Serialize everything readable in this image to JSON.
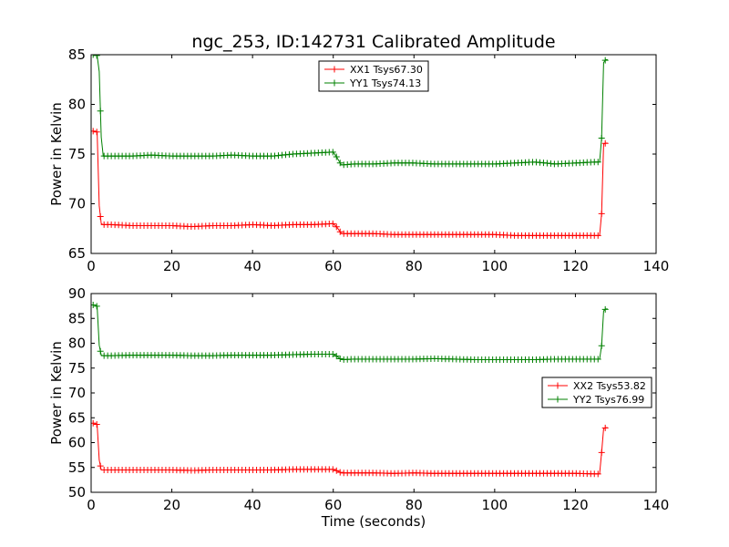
{
  "chart_data": [
    {
      "type": "line",
      "title": "ngc_253, ID:142731 Calibrated Amplitude",
      "xlabel": "",
      "ylabel": "Power in Kelvin",
      "xlim": [
        0,
        140
      ],
      "ylim": [
        65,
        85
      ],
      "xticks": [
        "0",
        "20",
        "40",
        "60",
        "80",
        "100",
        "120",
        "140"
      ],
      "yticks": [
        "65",
        "70",
        "75",
        "80",
        "85"
      ],
      "legend_position": "upper-center",
      "series": [
        {
          "name": "XX1 Tsys67.30",
          "color": "#ff0000",
          "x": [
            0.5,
            1,
            1.5,
            2,
            2.5,
            3,
            5,
            10,
            15,
            20,
            25,
            30,
            35,
            40,
            45,
            50,
            55,
            60,
            61,
            62,
            65,
            70,
            75,
            80,
            85,
            90,
            95,
            100,
            105,
            110,
            115,
            120,
            125,
            126,
            126.5,
            127,
            127.5,
            128
          ],
          "y": [
            77.3,
            77.3,
            77.2,
            69.8,
            68.0,
            67.9,
            67.9,
            67.8,
            67.8,
            67.8,
            67.7,
            67.8,
            67.8,
            67.9,
            67.8,
            67.9,
            67.9,
            68.0,
            67.6,
            67.0,
            67.0,
            67.0,
            66.9,
            66.9,
            66.9,
            66.9,
            66.9,
            66.9,
            66.8,
            66.8,
            66.8,
            66.8,
            66.8,
            66.8,
            69.0,
            76.0,
            76.1,
            76.1
          ]
        },
        {
          "name": "YY1 Tsys74.13",
          "color": "#008000",
          "x": [
            0.5,
            1,
            1.5,
            2,
            2.5,
            3,
            5,
            10,
            15,
            20,
            25,
            30,
            35,
            40,
            45,
            50,
            55,
            60,
            61,
            62,
            65,
            70,
            75,
            80,
            85,
            90,
            95,
            100,
            105,
            110,
            115,
            120,
            125,
            126,
            126.5,
            127,
            127.5,
            128
          ],
          "y": [
            85.0,
            85.0,
            84.9,
            83.3,
            76.7,
            74.8,
            74.8,
            74.8,
            74.9,
            74.8,
            74.8,
            74.8,
            74.9,
            74.8,
            74.8,
            75.0,
            75.1,
            75.2,
            74.6,
            73.9,
            74.0,
            74.0,
            74.1,
            74.1,
            74.0,
            74.0,
            74.0,
            74.0,
            74.1,
            74.2,
            74.0,
            74.1,
            74.2,
            74.2,
            76.6,
            84.2,
            84.5,
            84.5
          ]
        }
      ]
    },
    {
      "type": "line",
      "title": "",
      "xlabel": "Time (seconds)",
      "ylabel": "Power in Kelvin",
      "xlim": [
        0,
        140
      ],
      "ylim": [
        50,
        90
      ],
      "xticks": [
        "0",
        "20",
        "40",
        "60",
        "80",
        "100",
        "120",
        "140"
      ],
      "yticks": [
        "50",
        "55",
        "60",
        "65",
        "70",
        "75",
        "80",
        "85",
        "90"
      ],
      "legend_position": "center-right",
      "series": [
        {
          "name": "XX2 Tsys53.82",
          "color": "#ff0000",
          "x": [
            0.5,
            1,
            1.5,
            2,
            2.5,
            3,
            5,
            10,
            15,
            20,
            25,
            30,
            35,
            40,
            45,
            50,
            55,
            60,
            61,
            62,
            65,
            70,
            75,
            80,
            85,
            90,
            95,
            100,
            105,
            110,
            115,
            120,
            125,
            126,
            126.5,
            127,
            127.5,
            128
          ],
          "y": [
            63.9,
            63.9,
            63.6,
            56.5,
            54.5,
            54.5,
            54.5,
            54.5,
            54.5,
            54.5,
            54.4,
            54.5,
            54.5,
            54.5,
            54.5,
            54.6,
            54.6,
            54.6,
            54.3,
            53.9,
            53.9,
            53.9,
            53.8,
            53.9,
            53.8,
            53.8,
            53.8,
            53.8,
            53.8,
            53.8,
            53.8,
            53.8,
            53.7,
            53.7,
            58.0,
            62.8,
            63.0,
            63.0
          ]
        },
        {
          "name": "YY2 Tsys76.99",
          "color": "#008000",
          "x": [
            0.5,
            1,
            1.5,
            2,
            2.5,
            3,
            5,
            10,
            15,
            20,
            25,
            30,
            35,
            40,
            45,
            50,
            55,
            60,
            61,
            62,
            65,
            70,
            75,
            80,
            85,
            90,
            95,
            100,
            105,
            110,
            115,
            120,
            125,
            126,
            126.5,
            127,
            127.5,
            128
          ],
          "y": [
            87.7,
            87.7,
            87.4,
            79.6,
            77.6,
            77.5,
            77.5,
            77.6,
            77.6,
            77.6,
            77.5,
            77.5,
            77.6,
            77.6,
            77.6,
            77.7,
            77.8,
            77.8,
            77.3,
            76.7,
            76.8,
            76.8,
            76.8,
            76.8,
            76.9,
            76.8,
            76.7,
            76.7,
            76.7,
            76.7,
            76.8,
            76.8,
            76.8,
            76.8,
            79.5,
            86.5,
            86.9,
            86.9
          ]
        }
      ]
    }
  ]
}
